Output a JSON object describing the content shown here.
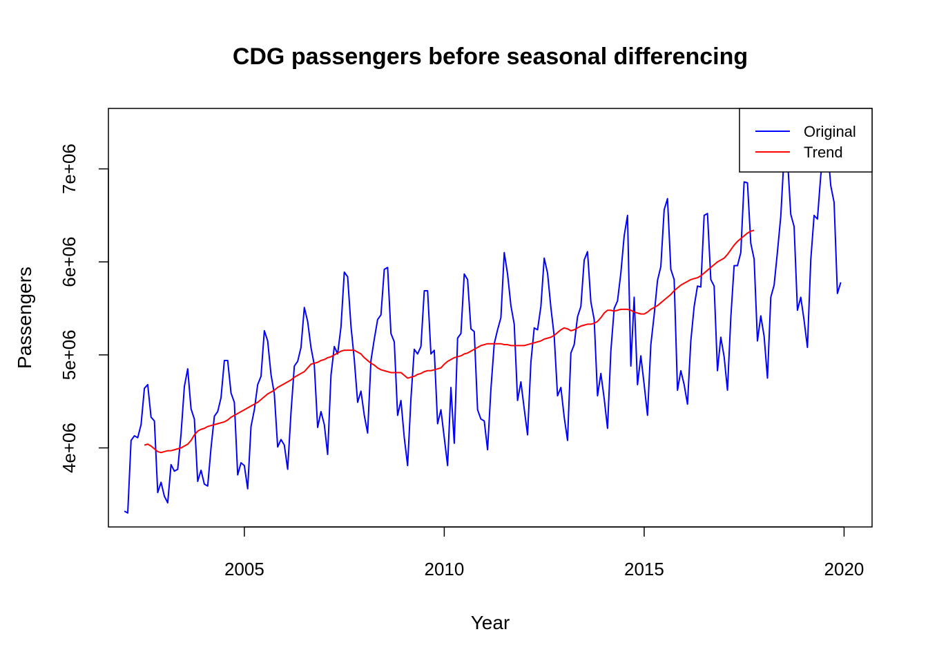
{
  "chart_data": {
    "type": "line",
    "title": "CDG passengers before seasonal differencing",
    "xlabel": "Year",
    "ylabel": "Passengers",
    "xlim": [
      2001.6,
      2020.7
    ],
    "ylim": [
      3150000,
      7650000
    ],
    "x_ticks": [
      2005,
      2010,
      2015,
      2020
    ],
    "x_tick_labels": [
      "2005",
      "2010",
      "2015",
      "2020"
    ],
    "y_ticks": [
      4000000,
      5000000,
      6000000,
      7000000
    ],
    "y_tick_labels": [
      "4e+06",
      "5e+06",
      "6e+06",
      "7e+06"
    ],
    "grid": false,
    "legend": {
      "position": "top-right",
      "entries": [
        "Original",
        "Trend"
      ]
    },
    "series": [
      {
        "name": "Original",
        "color": "#0000ff",
        "x_start": 2002.0,
        "x_step": 0.0833333,
        "values": [
          3320000,
          3300000,
          4080000,
          4130000,
          4110000,
          4250000,
          4640000,
          4680000,
          4330000,
          4290000,
          3520000,
          3630000,
          3480000,
          3410000,
          3820000,
          3750000,
          3770000,
          4150000,
          4660000,
          4850000,
          4420000,
          4310000,
          3640000,
          3760000,
          3610000,
          3590000,
          4000000,
          4340000,
          4390000,
          4540000,
          4940000,
          4940000,
          4590000,
          4490000,
          3710000,
          3840000,
          3810000,
          3560000,
          4230000,
          4410000,
          4680000,
          4770000,
          5260000,
          5150000,
          4790000,
          4580000,
          4010000,
          4090000,
          4030000,
          3770000,
          4380000,
          4880000,
          4930000,
          5080000,
          5510000,
          5360000,
          5080000,
          4890000,
          4220000,
          4390000,
          4250000,
          3930000,
          4780000,
          5090000,
          5010000,
          5300000,
          5890000,
          5840000,
          5310000,
          4950000,
          4490000,
          4610000,
          4350000,
          4160000,
          4940000,
          5170000,
          5380000,
          5430000,
          5920000,
          5940000,
          5230000,
          5140000,
          4350000,
          4510000,
          4110000,
          3810000,
          4530000,
          5060000,
          5010000,
          5090000,
          5690000,
          5690000,
          5010000,
          5050000,
          4260000,
          4410000,
          4110000,
          3810000,
          4650000,
          4050000,
          5180000,
          5230000,
          5870000,
          5810000,
          5280000,
          5250000,
          4410000,
          4310000,
          4290000,
          3980000,
          4630000,
          5120000,
          5270000,
          5400000,
          6100000,
          5870000,
          5530000,
          5330000,
          4510000,
          4710000,
          4420000,
          4140000,
          4920000,
          5290000,
          5270000,
          5520000,
          6040000,
          5880000,
          5510000,
          5200000,
          4560000,
          4650000,
          4330000,
          4080000,
          5020000,
          5110000,
          5410000,
          5520000,
          6020000,
          6110000,
          5570000,
          5380000,
          4560000,
          4800000,
          4530000,
          4210000,
          5040000,
          5500000,
          5580000,
          5880000,
          6280000,
          6500000,
          4880000,
          5620000,
          4680000,
          4990000,
          4680000,
          4350000,
          5110000,
          5430000,
          5800000,
          5950000,
          6560000,
          6680000,
          5920000,
          5810000,
          4620000,
          4830000,
          4680000,
          4470000,
          5150000,
          5520000,
          5740000,
          5730000,
          6500000,
          6520000,
          5810000,
          5740000,
          4830000,
          5190000,
          4980000,
          4620000,
          5400000,
          5960000,
          5960000,
          6100000,
          6860000,
          6850000,
          6200000,
          6030000,
          5150000,
          5420000,
          5200000,
          4750000,
          5620000,
          5750000,
          6110000,
          6490000,
          7150000,
          7120000,
          6510000,
          6380000,
          5480000,
          5620000,
          5370000,
          5080000,
          6020000,
          6500000,
          6460000,
          6930000,
          7200000,
          7250000,
          6820000,
          6640000,
          5660000,
          5780000
        ]
      },
      {
        "name": "Trend",
        "color": "#ff0000",
        "x_start": 2002.5,
        "x_step": 0.0833333,
        "values": [
          4030000,
          4040000,
          4020000,
          3990000,
          3960000,
          3950000,
          3960000,
          3970000,
          3970000,
          3980000,
          3990000,
          4000000,
          4020000,
          4040000,
          4080000,
          4140000,
          4180000,
          4200000,
          4210000,
          4230000,
          4240000,
          4250000,
          4260000,
          4270000,
          4280000,
          4300000,
          4330000,
          4350000,
          4370000,
          4390000,
          4410000,
          4430000,
          4450000,
          4470000,
          4490000,
          4520000,
          4550000,
          4580000,
          4600000,
          4620000,
          4650000,
          4670000,
          4690000,
          4710000,
          4730000,
          4760000,
          4780000,
          4800000,
          4820000,
          4860000,
          4900000,
          4910000,
          4920000,
          4940000,
          4950000,
          4970000,
          4980000,
          5000000,
          5020000,
          5040000,
          5050000,
          5050000,
          5050000,
          5050000,
          5030000,
          5010000,
          4970000,
          4940000,
          4910000,
          4890000,
          4860000,
          4840000,
          4830000,
          4820000,
          4810000,
          4810000,
          4810000,
          4810000,
          4780000,
          4750000,
          4760000,
          4770000,
          4790000,
          4800000,
          4820000,
          4830000,
          4830000,
          4840000,
          4850000,
          4860000,
          4900000,
          4930000,
          4950000,
          4970000,
          4980000,
          4990000,
          5010000,
          5020000,
          5040000,
          5060000,
          5080000,
          5100000,
          5110000,
          5120000,
          5120000,
          5120000,
          5120000,
          5120000,
          5110000,
          5110000,
          5100000,
          5100000,
          5100000,
          5100000,
          5100000,
          5110000,
          5120000,
          5130000,
          5140000,
          5150000,
          5170000,
          5180000,
          5190000,
          5210000,
          5240000,
          5270000,
          5290000,
          5280000,
          5260000,
          5270000,
          5290000,
          5310000,
          5320000,
          5330000,
          5330000,
          5340000,
          5360000,
          5400000,
          5450000,
          5480000,
          5480000,
          5470000,
          5480000,
          5490000,
          5490000,
          5490000,
          5480000,
          5460000,
          5450000,
          5440000,
          5440000,
          5460000,
          5490000,
          5510000,
          5530000,
          5560000,
          5590000,
          5620000,
          5650000,
          5690000,
          5720000,
          5750000,
          5770000,
          5790000,
          5810000,
          5820000,
          5830000,
          5850000,
          5880000,
          5910000,
          5940000,
          5970000,
          6000000,
          6020000,
          6040000,
          6080000,
          6130000,
          6180000,
          6220000,
          6250000,
          6280000,
          6310000,
          6330000,
          6340000
        ]
      }
    ]
  }
}
